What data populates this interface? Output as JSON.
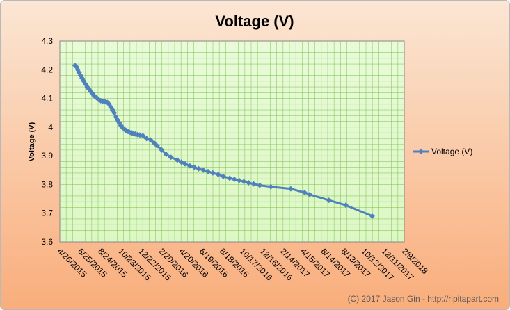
{
  "chart_data": {
    "type": "line",
    "title": "Voltage (V)",
    "ylabel": "Voltage (V)",
    "xlabel": "",
    "ylim": [
      3.6,
      4.3
    ],
    "yticks": [
      "3.6",
      "3.7",
      "3.8",
      "3.9",
      "4",
      "4.1",
      "4.2",
      "4.3"
    ],
    "xlim": [
      "2015-04-26",
      "2018-02-09"
    ],
    "xticks": [
      "4/26/2015",
      "6/25/2015",
      "8/24/2015",
      "10/23/2015",
      "12/22/2015",
      "2/20/2016",
      "4/20/2016",
      "6/19/2016",
      "8/18/2016",
      "10/17/2016",
      "12/16/2016",
      "2/14/2017",
      "4/15/2017",
      "6/14/2017",
      "8/13/2017",
      "10/12/2017",
      "12/11/2017",
      "2/9/2018"
    ],
    "grid": true,
    "legend": "right",
    "copyright": "(C) 2017 Jason Gin - http://ripitapart.com",
    "colors": {
      "series": "#4f81bd",
      "plot_bg": "#ddf7c4",
      "grid": "#7fc257",
      "frame_bg_top": "#fbe6d4",
      "frame_bg_bottom": "#f9ad7b"
    },
    "series": [
      {
        "name": "Voltage (V)",
        "x": [
          "2015-06-10",
          "2015-06-14",
          "2015-06-18",
          "2015-06-22",
          "2015-06-26",
          "2015-07-01",
          "2015-07-06",
          "2015-07-11",
          "2015-07-16",
          "2015-07-21",
          "2015-07-26",
          "2015-07-31",
          "2015-08-05",
          "2015-08-10",
          "2015-08-15",
          "2015-08-20",
          "2015-08-25",
          "2015-08-30",
          "2015-09-04",
          "2015-09-09",
          "2015-09-14",
          "2015-09-19",
          "2015-09-24",
          "2015-09-29",
          "2015-10-04",
          "2015-10-09",
          "2015-10-14",
          "2015-10-19",
          "2015-10-24",
          "2015-10-29",
          "2015-11-03",
          "2015-11-08",
          "2015-11-13",
          "2015-11-18",
          "2015-11-23",
          "2015-11-28",
          "2015-12-05",
          "2015-12-12",
          "2015-12-19",
          "2015-12-28",
          "2016-01-08",
          "2016-01-20",
          "2016-01-30",
          "2016-02-08",
          "2016-02-22",
          "2016-03-06",
          "2016-03-20",
          "2016-04-08",
          "2016-04-20",
          "2016-05-01",
          "2016-05-15",
          "2016-05-28",
          "2016-06-10",
          "2016-06-24",
          "2016-07-08",
          "2016-07-22",
          "2016-08-07",
          "2016-08-22",
          "2016-09-10",
          "2016-09-24",
          "2016-10-08",
          "2016-10-22",
          "2016-11-05",
          "2016-11-20",
          "2016-12-08",
          "2017-01-10",
          "2017-03-10",
          "2017-04-20",
          "2017-05-05",
          "2017-07-01",
          "2017-08-20",
          "2017-11-06"
        ],
        "values": [
          4.215,
          4.21,
          4.2,
          4.19,
          4.18,
          4.17,
          4.16,
          4.15,
          4.14,
          4.133,
          4.125,
          4.118,
          4.11,
          4.105,
          4.1,
          4.095,
          4.092,
          4.09,
          4.09,
          4.088,
          4.086,
          4.08,
          4.07,
          4.06,
          4.05,
          4.035,
          4.025,
          4.015,
          4.005,
          3.998,
          3.993,
          3.988,
          3.985,
          3.982,
          3.98,
          3.978,
          3.976,
          3.974,
          3.972,
          3.97,
          3.96,
          3.955,
          3.945,
          3.935,
          3.92,
          3.905,
          3.895,
          3.885,
          3.878,
          3.872,
          3.865,
          3.86,
          3.855,
          3.85,
          3.845,
          3.84,
          3.835,
          3.828,
          3.822,
          3.818,
          3.814,
          3.81,
          3.806,
          3.802,
          3.797,
          3.792,
          3.785,
          3.772,
          3.765,
          3.745,
          3.728,
          3.69
        ]
      }
    ]
  }
}
